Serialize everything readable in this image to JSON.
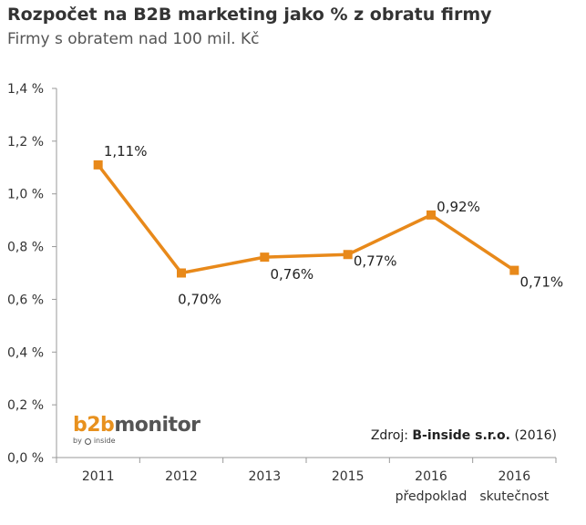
{
  "title": "Rozpočet na B2B marketing jako % z obratu firmy",
  "subtitle": "Firmy s obratem nad 100 mil. Kč",
  "logo": {
    "brand_part1": "b2b",
    "brand_part2": "monitor",
    "byline_prefix": "by",
    "byline_name": "inside"
  },
  "source": {
    "prefix": "Zdroj:",
    "name": "B-inside s.r.o.",
    "year": "(2016)"
  },
  "colors": {
    "line": "#E8891A",
    "axis": "#999999"
  },
  "chart_data": {
    "type": "line",
    "title": "Rozpočet na B2B marketing jako % z obratu firmy",
    "subtitle": "Firmy s obratem nad 100 mil. Kč",
    "categories": [
      "2011",
      "2012",
      "2013",
      "2015",
      "2016",
      "2016"
    ],
    "category_sublabels": [
      "",
      "",
      "",
      "",
      "předpoklad",
      "skutečnost"
    ],
    "series": [
      {
        "values": [
          1.11,
          0.7,
          0.76,
          0.77,
          0.92,
          0.71
        ],
        "labels": [
          "1,11%",
          "0,70%",
          "0,76%",
          "0,77%",
          "0,92%",
          "0,71%"
        ]
      }
    ],
    "ylim": [
      0,
      1.4
    ],
    "yticks": [
      0,
      0.2,
      0.4,
      0.6,
      0.8,
      1.0,
      1.2,
      1.4
    ],
    "ytick_labels": [
      "0,0 %",
      "0,2 %",
      "0,4 %",
      "0,6 %",
      "0,8 %",
      "1,0 %",
      "1,2 %",
      "1,4 %"
    ],
    "grid": false,
    "legend": "none"
  }
}
